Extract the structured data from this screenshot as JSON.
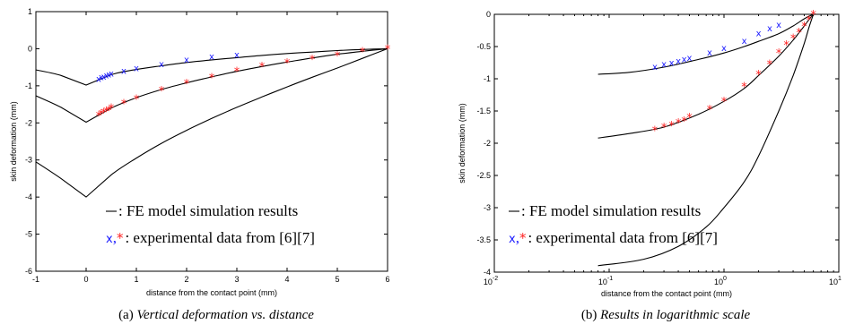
{
  "chart_data": [
    {
      "type": "line",
      "caption_prefix": "(a) ",
      "caption_italic": "Vertical deformation vs. distance",
      "xlabel": "distance from the contact point (mm)",
      "ylabel": "skin deformation (mm)",
      "xlim": [
        -1,
        6
      ],
      "ylim": [
        -6,
        1
      ],
      "xscale": "linear",
      "xticks": [
        -1,
        0,
        1,
        2,
        3,
        4,
        5,
        6
      ],
      "xtick_labels": [
        "-1",
        "0",
        "1",
        "2",
        "3",
        "4",
        "5",
        "6"
      ],
      "yticks": [
        1,
        0,
        -1,
        -2,
        -3,
        -4,
        -5,
        -6
      ],
      "ytick_labels": [
        "1",
        "0",
        "-1",
        "-2",
        "-3",
        "-4",
        "-5",
        "-6"
      ],
      "legend": {
        "line_text": ": FE model simulation results",
        "marker_text": ": experimental data from [6][7]",
        "marker_x": "x",
        "marker_sep": ",",
        "marker_star": "*"
      },
      "model_curves": [
        {
          "x": [
            -1,
            -0.5,
            0,
            0.5,
            1,
            1.5,
            2,
            2.5,
            3,
            3.5,
            4,
            4.5,
            5,
            5.5,
            6
          ],
          "y": [
            -0.57,
            -0.72,
            -0.98,
            -0.7,
            -0.56,
            -0.46,
            -0.37,
            -0.3,
            -0.24,
            -0.18,
            -0.13,
            -0.09,
            -0.05,
            -0.02,
            0
          ]
        },
        {
          "x": [
            -1,
            -0.5,
            0,
            0.5,
            1,
            1.5,
            2,
            2.5,
            3,
            3.5,
            4,
            4.5,
            5,
            5.5,
            6
          ],
          "y": [
            -1.27,
            -1.58,
            -1.98,
            -1.6,
            -1.32,
            -1.1,
            -0.92,
            -0.76,
            -0.61,
            -0.48,
            -0.36,
            -0.25,
            -0.15,
            -0.07,
            0
          ]
        },
        {
          "x": [
            -1,
            -0.5,
            0,
            0.5,
            1,
            1.5,
            2,
            2.5,
            3,
            3.5,
            4,
            4.5,
            5,
            5.5,
            6
          ],
          "y": [
            -3.05,
            -3.5,
            -4.0,
            -3.4,
            -2.95,
            -2.55,
            -2.2,
            -1.88,
            -1.58,
            -1.3,
            -1.03,
            -0.77,
            -0.52,
            -0.26,
            0
          ]
        }
      ],
      "series": [
        {
          "marker": "x",
          "color": "#1a1aff",
          "x": [
            0.25,
            0.3,
            0.35,
            0.4,
            0.45,
            0.5,
            0.75,
            1.0,
            1.5,
            2.0,
            2.5,
            3.0
          ],
          "y": [
            -0.82,
            -0.78,
            -0.76,
            -0.73,
            -0.7,
            -0.68,
            -0.6,
            -0.53,
            -0.42,
            -0.3,
            -0.22,
            -0.17
          ]
        },
        {
          "marker": "*",
          "color": "#ff2020",
          "x": [
            0.25,
            0.3,
            0.35,
            0.4,
            0.45,
            0.5,
            0.75,
            1.0,
            1.5,
            2.0,
            2.5,
            3.0,
            3.5,
            4.0,
            4.5,
            5.0,
            5.5,
            6.0
          ],
          "y": [
            -1.8,
            -1.75,
            -1.72,
            -1.68,
            -1.65,
            -1.6,
            -1.47,
            -1.35,
            -1.12,
            -0.93,
            -0.77,
            -0.6,
            -0.47,
            -0.37,
            -0.28,
            -0.18,
            -0.08,
            0
          ]
        }
      ]
    },
    {
      "type": "line",
      "caption_prefix": "(b) ",
      "caption_italic": "Results in logarithmic scale",
      "xlabel": "distance from the contact point (mm)",
      "ylabel": "skin deformation (mm)",
      "xlim": [
        0.01,
        10
      ],
      "ylim": [
        -4,
        0
      ],
      "xscale": "log",
      "xticks": [
        0.01,
        0.1,
        1,
        10
      ],
      "xtick_base": [
        "10",
        "10",
        "10",
        "10"
      ],
      "xtick_exp": [
        "-2",
        "-1",
        "0",
        "1"
      ],
      "yticks": [
        0,
        -0.5,
        -1,
        -1.5,
        -2,
        -2.5,
        -3,
        -3.5,
        -4
      ],
      "ytick_labels": [
        "0",
        "-0.5",
        "-1",
        "-1.5",
        "-2",
        "-2.5",
        "-3",
        "-3.5",
        "-4"
      ],
      "legend": {
        "line_text": ": FE model simulation results",
        "marker_text": ": experimental data from [6][7]",
        "marker_x": "x",
        "marker_sep": ",",
        "marker_star": "*"
      },
      "model_curves": [
        {
          "x": [
            0.08,
            0.15,
            0.3,
            0.6,
            1.0,
            1.5,
            2.0,
            3.0,
            4.0,
            5.0,
            5.5,
            6.0
          ],
          "y": [
            -0.93,
            -0.9,
            -0.82,
            -0.7,
            -0.6,
            -0.5,
            -0.42,
            -0.3,
            -0.18,
            -0.07,
            -0.03,
            0
          ]
        },
        {
          "x": [
            0.08,
            0.15,
            0.3,
            0.6,
            1.0,
            1.5,
            2.0,
            3.0,
            4.0,
            5.0,
            5.5,
            6.0
          ],
          "y": [
            -1.92,
            -1.85,
            -1.75,
            -1.55,
            -1.35,
            -1.15,
            -0.95,
            -0.65,
            -0.4,
            -0.18,
            -0.08,
            0
          ]
        },
        {
          "x": [
            0.08,
            0.2,
            0.4,
            0.7,
            1.0,
            1.5,
            2.0,
            3.0,
            4.0,
            5.0,
            5.5,
            6.0
          ],
          "y": [
            -3.9,
            -3.8,
            -3.6,
            -3.3,
            -3.0,
            -2.6,
            -2.2,
            -1.5,
            -0.95,
            -0.45,
            -0.2,
            0
          ]
        }
      ],
      "series": [
        {
          "marker": "x",
          "color": "#1a1aff",
          "x": [
            0.25,
            0.3,
            0.35,
            0.4,
            0.45,
            0.5,
            0.75,
            1.0,
            1.5,
            2.0,
            2.5,
            3.0
          ],
          "y": [
            -0.82,
            -0.78,
            -0.76,
            -0.73,
            -0.7,
            -0.68,
            -0.6,
            -0.53,
            -0.42,
            -0.3,
            -0.22,
            -0.17
          ]
        },
        {
          "marker": "*",
          "color": "#ff2020",
          "x": [
            0.25,
            0.3,
            0.35,
            0.4,
            0.45,
            0.5,
            0.75,
            1.0,
            1.5,
            2.0,
            2.5,
            3.0,
            3.5,
            4.0,
            4.5,
            5.0,
            5.5,
            6.0
          ],
          "y": [
            -1.8,
            -1.75,
            -1.72,
            -1.68,
            -1.65,
            -1.6,
            -1.47,
            -1.35,
            -1.12,
            -0.93,
            -0.77,
            -0.6,
            -0.47,
            -0.37,
            -0.28,
            -0.18,
            -0.08,
            0
          ]
        }
      ]
    }
  ]
}
